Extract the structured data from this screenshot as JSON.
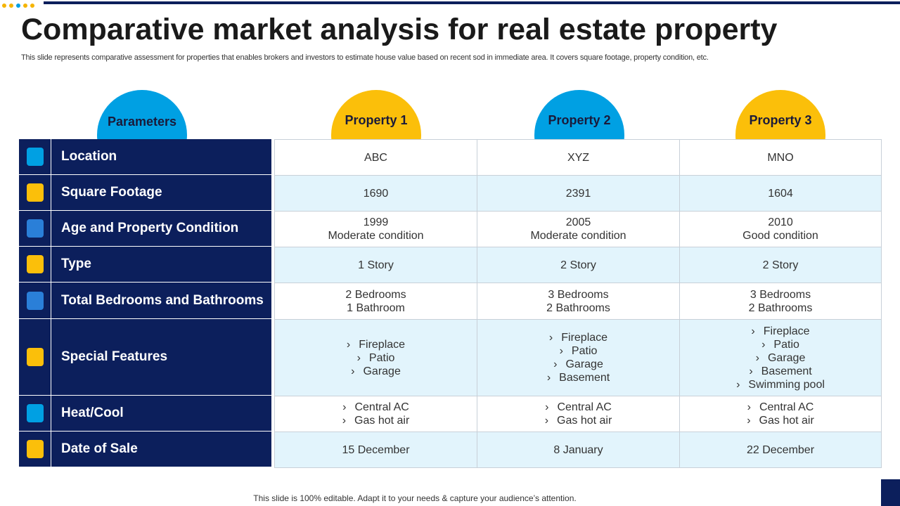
{
  "header": {
    "title": "Comparative market analysis for real estate property",
    "subtitle": "This slide represents comparative assessment for properties that enables brokers and investors to estimate house value based on recent sod in immediate area. It covers square footage, property condition, etc."
  },
  "table": {
    "columns": [
      "Parameters",
      "Property 1",
      "Property 2",
      "Property 3"
    ],
    "rows": [
      {
        "label": "Location",
        "cells": [
          [
            "ABC"
          ],
          [
            "XYZ"
          ],
          [
            "MNO"
          ]
        ]
      },
      {
        "label": "Square Footage",
        "cells": [
          [
            "1690"
          ],
          [
            "2391"
          ],
          [
            "1604"
          ]
        ]
      },
      {
        "label": "Age and Property Condition",
        "cells": [
          [
            "1999",
            "Moderate condition"
          ],
          [
            "2005",
            "Moderate condition"
          ],
          [
            "2010",
            "Good condition"
          ]
        ]
      },
      {
        "label": "Type",
        "cells": [
          [
            "1 Story"
          ],
          [
            "2 Story"
          ],
          [
            "2 Story"
          ]
        ]
      },
      {
        "label": "Total Bedrooms and Bathrooms",
        "cells": [
          [
            "2 Bedrooms",
            "1 Bathroom"
          ],
          [
            "3 Bedrooms",
            "2 Bathrooms"
          ],
          [
            "3 Bedrooms",
            "2 Bathrooms"
          ]
        ]
      },
      {
        "label": "Special Features",
        "bulleted": true,
        "cells": [
          [
            "Fireplace",
            "Patio",
            "Garage"
          ],
          [
            "Fireplace",
            "Patio",
            "Garage",
            "Basement"
          ],
          [
            "Fireplace",
            "Patio",
            "Garage",
            "Basement",
            "Swimming pool"
          ]
        ]
      },
      {
        "label": "Heat/Cool",
        "bulleted": true,
        "cells": [
          [
            "Central AC",
            "Gas hot air"
          ],
          [
            "Central AC",
            "Gas hot air"
          ],
          [
            "Central AC",
            "Gas hot air"
          ]
        ]
      },
      {
        "label": "Date of Sale",
        "cells": [
          [
            "15 December"
          ],
          [
            "8 January"
          ],
          [
            "22 December"
          ]
        ]
      }
    ]
  },
  "footer": {
    "note": "This slide is 100% editable. Adapt it to your needs & capture your audience’s attention."
  }
}
